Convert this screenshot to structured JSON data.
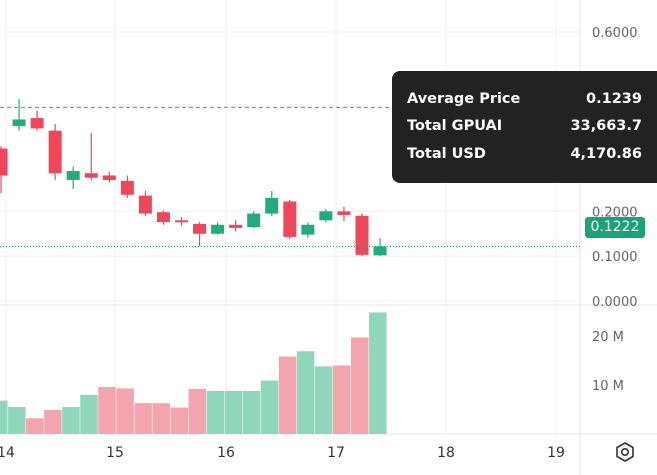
{
  "chart_data": {
    "type": "candlestick",
    "y_ticks": [
      "0.6000",
      "0.2000",
      "0.1000",
      "0.0000"
    ],
    "volume_ticks": [
      "20 M",
      "10 M"
    ],
    "x_ticks": [
      "14",
      "15",
      "16",
      "17",
      "18",
      "19"
    ],
    "ylim": [
      0,
      0.6
    ],
    "volume_ylim": [
      0,
      26000000
    ],
    "current_price_label": "0.1222",
    "candles": [
      {
        "open": 0.34,
        "high": 0.345,
        "low": 0.24,
        "close": 0.28
      },
      {
        "open": 0.39,
        "high": 0.45,
        "low": 0.38,
        "close": 0.405
      },
      {
        "open": 0.408,
        "high": 0.425,
        "low": 0.38,
        "close": 0.385
      },
      {
        "open": 0.38,
        "high": 0.395,
        "low": 0.27,
        "close": 0.285
      },
      {
        "open": 0.27,
        "high": 0.3,
        "low": 0.25,
        "close": 0.29
      },
      {
        "open": 0.285,
        "high": 0.375,
        "low": 0.27,
        "close": 0.275
      },
      {
        "open": 0.28,
        "high": 0.288,
        "low": 0.265,
        "close": 0.27
      },
      {
        "open": 0.268,
        "high": 0.28,
        "low": 0.23,
        "close": 0.237
      },
      {
        "open": 0.235,
        "high": 0.245,
        "low": 0.19,
        "close": 0.195
      },
      {
        "open": 0.198,
        "high": 0.202,
        "low": 0.17,
        "close": 0.176
      },
      {
        "open": 0.18,
        "high": 0.187,
        "low": 0.168,
        "close": 0.178
      },
      {
        "open": 0.172,
        "high": 0.176,
        "low": 0.123,
        "close": 0.15
      },
      {
        "open": 0.15,
        "high": 0.175,
        "low": 0.148,
        "close": 0.17
      },
      {
        "open": 0.17,
        "high": 0.18,
        "low": 0.155,
        "close": 0.163
      },
      {
        "open": 0.165,
        "high": 0.2,
        "low": 0.163,
        "close": 0.195
      },
      {
        "open": 0.195,
        "high": 0.245,
        "low": 0.19,
        "close": 0.23
      },
      {
        "open": 0.222,
        "high": 0.225,
        "low": 0.138,
        "close": 0.143
      },
      {
        "open": 0.148,
        "high": 0.175,
        "low": 0.141,
        "close": 0.17
      },
      {
        "open": 0.18,
        "high": 0.205,
        "low": 0.175,
        "close": 0.2
      },
      {
        "open": 0.2,
        "high": 0.21,
        "low": 0.178,
        "close": 0.192
      },
      {
        "open": 0.19,
        "high": 0.195,
        "low": 0.1,
        "close": 0.103
      },
      {
        "open": 0.102,
        "high": 0.14,
        "low": 0.1,
        "close": 0.122
      }
    ],
    "volume_series": [
      {
        "value": 6800000,
        "direction": "up"
      },
      {
        "value": 5500000,
        "direction": "up"
      },
      {
        "value": 3200000,
        "direction": "down"
      },
      {
        "value": 4900000,
        "direction": "down"
      },
      {
        "value": 5500000,
        "direction": "up"
      },
      {
        "value": 8000000,
        "direction": "up"
      },
      {
        "value": 9600000,
        "direction": "down"
      },
      {
        "value": 9300000,
        "direction": "down"
      },
      {
        "value": 6300000,
        "direction": "down"
      },
      {
        "value": 6300000,
        "direction": "down"
      },
      {
        "value": 5400000,
        "direction": "down"
      },
      {
        "value": 9200000,
        "direction": "down"
      },
      {
        "value": 8800000,
        "direction": "up"
      },
      {
        "value": 8800000,
        "direction": "up"
      },
      {
        "value": 8800000,
        "direction": "up"
      },
      {
        "value": 10900000,
        "direction": "up"
      },
      {
        "value": 15800000,
        "direction": "down"
      },
      {
        "value": 16900000,
        "direction": "up"
      },
      {
        "value": 13800000,
        "direction": "up"
      },
      {
        "value": 14000000,
        "direction": "down"
      },
      {
        "value": 19700000,
        "direction": "down"
      },
      {
        "value": 24800000,
        "direction": "up"
      }
    ]
  },
  "tooltip": {
    "rows": [
      {
        "label": "Average Price",
        "value": "0.1239"
      },
      {
        "label": "Total GPUAI",
        "value": "33,663.7"
      },
      {
        "label": "Total USD",
        "value": "4,170.86"
      }
    ]
  },
  "colors": {
    "up": "#22ab80",
    "down": "#f0465a",
    "volume_up": "#8fd6bb",
    "volume_down": "#f4a4ae",
    "price_line": "#1aa37a",
    "crosshair": "#b5697a"
  },
  "icons": {
    "settings": "settings-icon"
  }
}
